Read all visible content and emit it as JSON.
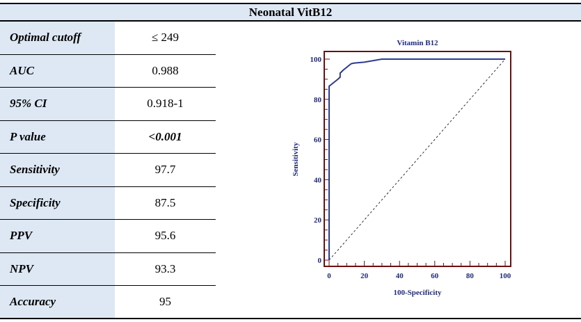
{
  "title": "Neonatal VitB12",
  "rows": [
    {
      "label": "Optimal cutoff",
      "value": "≤ 249"
    },
    {
      "label": "AUC",
      "value": "0.988"
    },
    {
      "label": "95% CI",
      "value": "0.918-1"
    },
    {
      "label": "P value",
      "value": "<0.001",
      "emphasis": true
    },
    {
      "label": "Sensitivity",
      "value": "97.7"
    },
    {
      "label": "Specificity",
      "value": "87.5"
    },
    {
      "label": "PPV",
      "value": "95.6"
    },
    {
      "label": "NPV",
      "value": "93.3"
    },
    {
      "label": "Accuracy",
      "value": "95"
    }
  ],
  "chart_data": {
    "type": "line",
    "title": "Vitamin B12",
    "xlabel": "100-Specificity",
    "ylabel": "Sensitivity",
    "xlim": [
      0,
      100
    ],
    "ylim": [
      0,
      100
    ],
    "xticks": [
      "0",
      "20",
      "40",
      "60",
      "80",
      "100"
    ],
    "yticks": [
      "0",
      "20",
      "40",
      "60",
      "80",
      "100"
    ],
    "series": [
      {
        "x": [
          0,
          0,
          5,
          6.25,
          6.25,
          8,
          12.5,
          14,
          20,
          30,
          100
        ],
        "y": [
          0,
          86.5,
          90,
          91,
          93,
          94.5,
          97.7,
          98,
          98.5,
          100,
          100
        ],
        "color": "#2e3a8c"
      }
    ],
    "reference_line": {
      "x": [
        0,
        100
      ],
      "y": [
        0,
        100
      ],
      "style": "dashed"
    },
    "frame_color": "#6b0f0f"
  }
}
